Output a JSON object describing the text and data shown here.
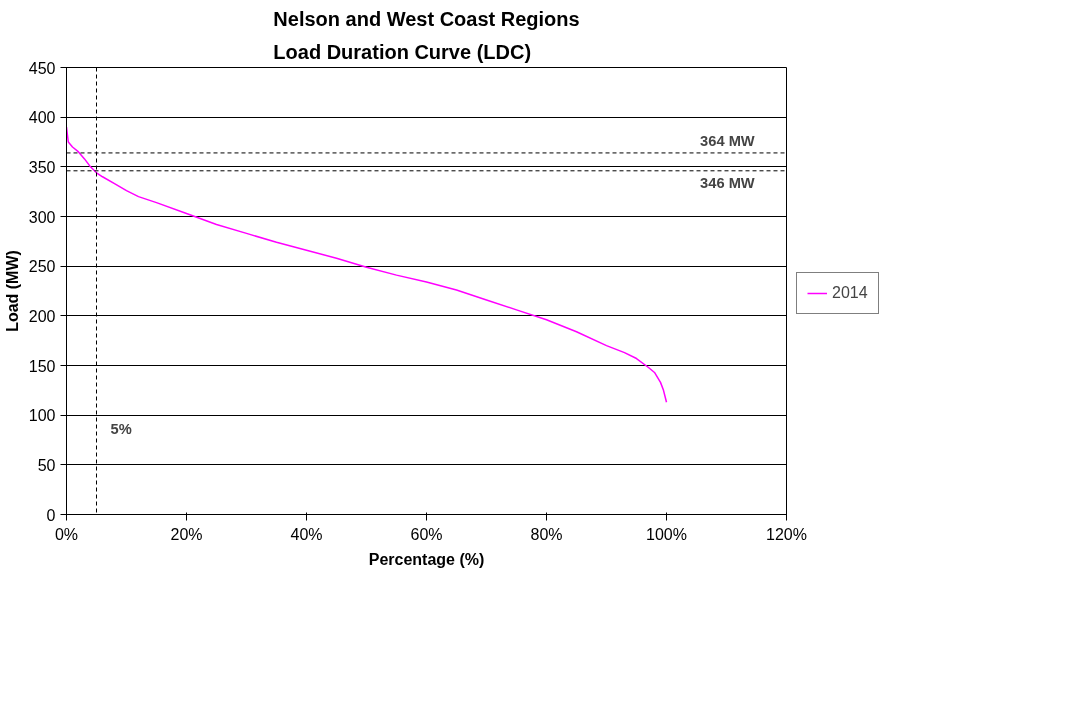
{
  "chart_data": {
    "type": "line",
    "title": "Nelson and West Coast Regions\nLoad Duration Curve (LDC)",
    "xlabel": "Percentage (%)",
    "ylabel": "Load (MW)",
    "series": [
      {
        "name": "2014",
        "color": "#ff00ff",
        "x": [
          0,
          0.3,
          1,
          2,
          3,
          4,
          5,
          6,
          8,
          10,
          12,
          15,
          20,
          25,
          30,
          35,
          40,
          45,
          50,
          55,
          60,
          65,
          70,
          75,
          80,
          85,
          90,
          93,
          95,
          97,
          98,
          99,
          99.5,
          100
        ],
        "values": [
          390,
          375,
          370,
          365,
          358,
          350,
          344,
          340,
          333,
          326,
          320,
          314,
          303,
          292,
          283,
          274,
          266,
          258,
          249,
          241,
          234,
          226,
          216,
          206,
          196,
          184,
          170,
          163,
          157,
          148,
          143,
          133,
          125,
          113
        ]
      }
    ],
    "xlim": [
      0,
      120
    ],
    "xticks": [
      {
        "value": 0,
        "label": "0%"
      },
      {
        "value": 20,
        "label": "20%"
      },
      {
        "value": 40,
        "label": "40%"
      },
      {
        "value": 60,
        "label": "60%"
      },
      {
        "value": 80,
        "label": "80%"
      },
      {
        "value": 100,
        "label": "100%"
      },
      {
        "value": 120,
        "label": "120%"
      }
    ],
    "ylim": [
      0,
      450
    ],
    "yticks": [
      0,
      50,
      100,
      150,
      200,
      250,
      300,
      350,
      400,
      450
    ],
    "ref_lines": [
      {
        "axis": "y",
        "value": 364,
        "label": "364 MW",
        "line_style": "dashed",
        "color": "#000000"
      },
      {
        "axis": "y",
        "value": 346,
        "label": "346 MW",
        "line_style": "dashed",
        "color": "#000000"
      },
      {
        "axis": "x",
        "value": 5,
        "label": "5%",
        "line_style": "dashed",
        "color": "#000000"
      }
    ],
    "grid": "y",
    "legend": "right",
    "marker": "none",
    "line_style": "solid"
  }
}
